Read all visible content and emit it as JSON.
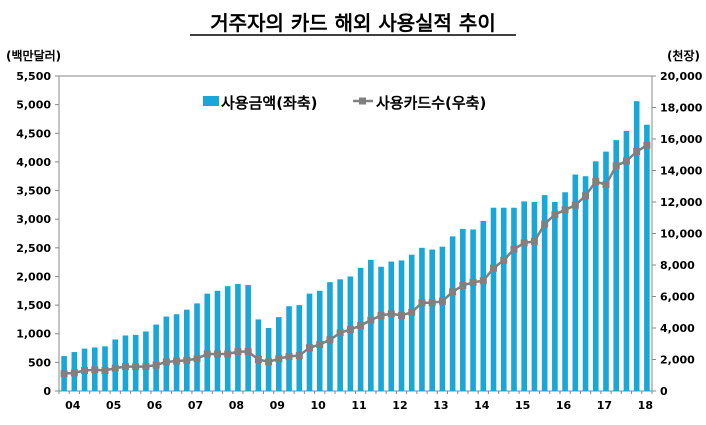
{
  "chart_data": {
    "type": "bar+line",
    "title": "거주자의 카드 해외 사용실적 추이",
    "ylabel_left": "(백만달러)",
    "ylabel_right": "(천장)",
    "ylim_left": [
      0,
      5500
    ],
    "yticks_left": [
      "0",
      "500",
      "1,000",
      "1,500",
      "2,000",
      "2,500",
      "3,000",
      "3,500",
      "4,000",
      "4,500",
      "5,000",
      "5,500"
    ],
    "ylim_right": [
      0,
      20000
    ],
    "yticks_right": [
      "0",
      "2,000",
      "4,000",
      "6,000",
      "8,000",
      "10,000",
      "12,000",
      "14,000",
      "16,000",
      "18,000",
      "20,000"
    ],
    "xtick_labels": [
      "04",
      "05",
      "06",
      "07",
      "08",
      "09",
      "10",
      "11",
      "12",
      "13",
      "14",
      "15",
      "16",
      "17",
      "18"
    ],
    "legend_placement": "top-center",
    "colors": {
      "bar": "#1aa7d8",
      "line": "#808080"
    },
    "series": [
      {
        "name": "사용금액(좌축)",
        "type": "bar",
        "axis": "left",
        "values": [
          610,
          680,
          740,
          760,
          780,
          900,
          970,
          980,
          1040,
          1160,
          1300,
          1340,
          1420,
          1530,
          1700,
          1750,
          1830,
          1870,
          1850,
          1250,
          1100,
          1290,
          1480,
          1500,
          1700,
          1750,
          1900,
          1950,
          2000,
          2150,
          2290,
          2170,
          2260,
          2280,
          2380,
          2500,
          2470,
          2520,
          2700,
          2830,
          2820,
          2970,
          3200,
          3200,
          3200,
          3310,
          3300,
          3420,
          3300,
          3470,
          3780,
          3750,
          4010,
          4180,
          4380,
          4540,
          5060,
          4650
        ]
      },
      {
        "name": "사용카드수(우축)",
        "type": "line",
        "axis": "right",
        "values": [
          1100,
          1150,
          1300,
          1350,
          1300,
          1450,
          1550,
          1550,
          1550,
          1650,
          1850,
          1900,
          1950,
          2050,
          2350,
          2350,
          2350,
          2500,
          2500,
          2000,
          1850,
          2050,
          2200,
          2250,
          2750,
          2950,
          3250,
          3700,
          3900,
          4150,
          4500,
          4800,
          4900,
          4800,
          5000,
          5600,
          5600,
          5700,
          6300,
          6700,
          6900,
          7000,
          7800,
          8300,
          9000,
          9400,
          9500,
          10600,
          11200,
          11500,
          11800,
          12400,
          13300,
          13100,
          14300,
          14600,
          15200,
          15600
        ]
      }
    ]
  }
}
